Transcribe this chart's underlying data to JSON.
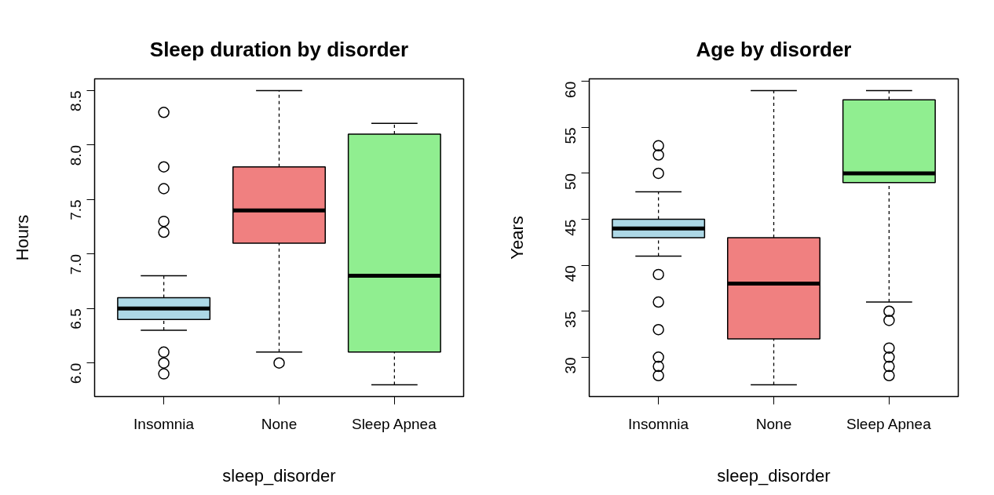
{
  "chart_data": [
    {
      "type": "box",
      "title": "Sleep duration by disorder",
      "xlabel": "sleep_disorder",
      "ylabel": "Hours",
      "categories": [
        "Insomnia",
        "None",
        "Sleep Apnea"
      ],
      "colors": [
        "#add8e6",
        "#f08080",
        "#90ee90"
      ],
      "boxes": [
        {
          "low": 6.3,
          "q1": 6.4,
          "median": 6.5,
          "q3": 6.6,
          "high": 6.8,
          "outliers": [
            8.3,
            7.8,
            7.6,
            7.3,
            7.2,
            6.1,
            6.0,
            5.9
          ]
        },
        {
          "low": 6.1,
          "q1": 7.1,
          "median": 7.4,
          "q3": 7.8,
          "high": 8.5,
          "outliers": [
            6.0
          ]
        },
        {
          "low": 5.8,
          "q1": 6.1,
          "median": 6.8,
          "q3": 8.1,
          "high": 8.2
        }
      ],
      "ylim": [
        5.692,
        8.608
      ],
      "yticks": [
        {
          "value": 6.0,
          "label": "6.0"
        },
        6.5,
        {
          "value": 7.0,
          "label": "7.0"
        },
        7.5,
        {
          "value": 8.0,
          "label": "8.0"
        },
        8.5
      ],
      "grid": false
    },
    {
      "type": "box",
      "title": "Age by disorder",
      "xlabel": "sleep_disorder",
      "ylabel": "Years",
      "categories": [
        "Insomnia",
        "None",
        "Sleep Apnea"
      ],
      "colors": [
        "#add8e6",
        "#f08080",
        "#90ee90"
      ],
      "boxes": [
        {
          "low": 41,
          "q1": 43,
          "median": 44,
          "q3": 45,
          "high": 48,
          "outliers": [
            53,
            52,
            50,
            39,
            36,
            33,
            30,
            29,
            28
          ]
        },
        {
          "low": 27,
          "q1": 32,
          "median": 38,
          "q3": 43,
          "high": 59
        },
        {
          "low": 36,
          "q1": 49,
          "median": 50,
          "q3": 58,
          "high": 59,
          "outliers": [
            35,
            34,
            31,
            30,
            29,
            28
          ]
        }
      ],
      "ylim": [
        25.72,
        60.28
      ],
      "yticks": [
        30,
        35,
        40,
        45,
        50,
        55,
        60
      ],
      "grid": false
    }
  ]
}
